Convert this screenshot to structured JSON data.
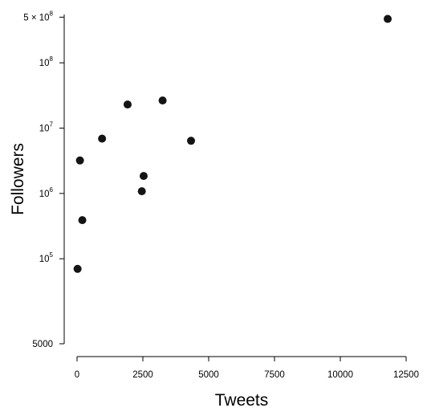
{
  "chart_data": {
    "type": "scatter",
    "title": "",
    "xlabel": "Tweets",
    "ylabel": "Followers",
    "x_scale": "linear",
    "y_scale": "log",
    "xlim": [
      -300,
      12500
    ],
    "ylim": [
      5000,
      550000000
    ],
    "grid": false,
    "x_ticks": [
      {
        "value": 0,
        "label": "0"
      },
      {
        "value": 2500,
        "label": "2500"
      },
      {
        "value": 5000,
        "label": "5000"
      },
      {
        "value": 7500,
        "label": "7500"
      },
      {
        "value": 10000,
        "label": "10000"
      },
      {
        "value": 12500,
        "label": "12500"
      }
    ],
    "y_ticks": [
      {
        "value": 5000,
        "base": "5000",
        "sup": ""
      },
      {
        "value": 100000,
        "base": "10",
        "sup": "5"
      },
      {
        "value": 1000000,
        "base": "10",
        "sup": "6"
      },
      {
        "value": 10000000,
        "base": "10",
        "sup": "7"
      },
      {
        "value": 100000000,
        "base": "10",
        "sup": "8"
      },
      {
        "value": 500000000,
        "base": "5 × 10",
        "sup": "8"
      }
    ],
    "color": "#141414",
    "points": [
      {
        "x": 20,
        "y": 70000
      },
      {
        "x": 110,
        "y": 3200000
      },
      {
        "x": 200,
        "y": 390000
      },
      {
        "x": 950,
        "y": 6900000
      },
      {
        "x": 1920,
        "y": 23000000
      },
      {
        "x": 2460,
        "y": 1080000
      },
      {
        "x": 2530,
        "y": 1850000
      },
      {
        "x": 3250,
        "y": 26500000
      },
      {
        "x": 4330,
        "y": 6400000
      },
      {
        "x": 11800,
        "y": 470000000
      }
    ]
  }
}
